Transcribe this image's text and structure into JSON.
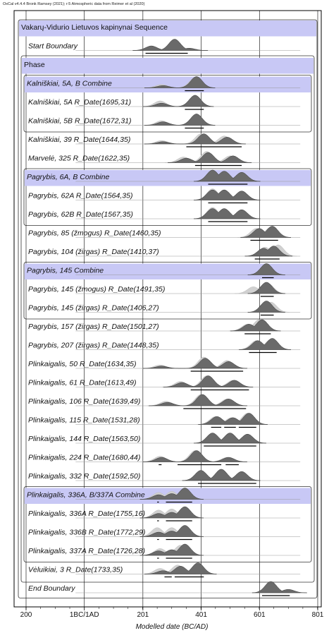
{
  "header": "OxCal v4.4.4 Bronk Ramsey (2021); r:5 Atmospheric data from Reimer et al (2020)",
  "chart_data": {
    "type": "oxcal-multiplot",
    "title": "",
    "xlabel": "Modelled date (BC/AD)",
    "xlim": [
      -200,
      801
    ],
    "xticks": [
      {
        "value": -200,
        "label": "200"
      },
      {
        "value": 0,
        "label": "1BC/1AD"
      },
      {
        "value": 201,
        "label": "201"
      },
      {
        "value": 401,
        "label": "401"
      },
      {
        "value": 601,
        "label": "601"
      },
      {
        "value": 801,
        "label": "801"
      }
    ],
    "rows": [
      {
        "label": "Vakarų-Vidurio Lietuvos kapinynai Sequence",
        "kind": "sequence"
      },
      {
        "label": "Start Boundary",
        "kind": "boundary",
        "posterior": [
          [
            230,
            0.4
          ],
          [
            310,
            1.0
          ],
          [
            360,
            0.2
          ]
        ],
        "range": [
          [
            210,
            355
          ]
        ]
      },
      {
        "label": "Phase",
        "kind": "phase"
      },
      {
        "label": "Kalniškiai, 5A, B Combine",
        "kind": "combine",
        "prior": [
          [
            265,
            0.3
          ],
          [
            380,
            0.9
          ]
        ],
        "posterior": [
          [
            270,
            0.2
          ],
          [
            385,
            1.0
          ]
        ],
        "range": [
          [
            345,
            410
          ]
        ]
      },
      {
        "label": "Kalniškiai, 5A R_Date(1695,31)",
        "kind": "date",
        "prior": [
          [
            260,
            0.5
          ],
          [
            380,
            1.0
          ]
        ],
        "posterior": [
          [
            265,
            0.3
          ],
          [
            380,
            1.0
          ]
        ],
        "range": [
          [
            345,
            410
          ]
        ]
      },
      {
        "label": "Kalniškiai, 5B R_Date(1672,31)",
        "kind": "date",
        "prior": [
          [
            265,
            0.4
          ],
          [
            385,
            1.0
          ]
        ],
        "posterior": [
          [
            270,
            0.3
          ],
          [
            385,
            1.0
          ]
        ],
        "range": [
          [
            345,
            410
          ]
        ]
      },
      {
        "label": "Kalniškiai, 39 R_Date(1644,35)",
        "kind": "date",
        "prior": [
          [
            265,
            0.3
          ],
          [
            400,
            0.9
          ],
          [
            480,
            0.7
          ]
        ],
        "posterior": [
          [
            270,
            0.2
          ],
          [
            410,
            0.9
          ],
          [
            490,
            0.6
          ]
        ],
        "range": [
          [
            350,
            540
          ]
        ]
      },
      {
        "label": "Marvelė, 325 R_Date(1622,35)",
        "kind": "date",
        "prior": [
          [
            340,
            0.5
          ],
          [
            420,
            1.0
          ],
          [
            500,
            0.6
          ]
        ],
        "posterior": [
          [
            350,
            0.4
          ],
          [
            425,
            0.9
          ],
          [
            510,
            0.6
          ]
        ],
        "range": [
          [
            380,
            540
          ]
        ]
      },
      {
        "label": "Pagrybis, 6A, B Combine",
        "kind": "combine",
        "prior": [
          [
            440,
            1.0
          ],
          [
            480,
            0.9
          ],
          [
            540,
            0.8
          ]
        ],
        "posterior": [
          [
            440,
            1.0
          ],
          [
            480,
            0.9
          ],
          [
            540,
            0.8
          ]
        ],
        "range": [
          [
            425,
            560
          ]
        ]
      },
      {
        "label": "Pagrybis, 62A R_Date(1564,35)",
        "kind": "date",
        "prior": [
          [
            440,
            1.0
          ],
          [
            480,
            0.9
          ],
          [
            540,
            0.8
          ]
        ],
        "posterior": [
          [
            440,
            0.9
          ],
          [
            480,
            0.9
          ],
          [
            540,
            0.8
          ]
        ],
        "range": [
          [
            425,
            560
          ]
        ]
      },
      {
        "label": "Pagrybis, 62B R_Date(1567,35)",
        "kind": "date",
        "prior": [
          [
            440,
            1.0
          ],
          [
            480,
            0.9
          ],
          [
            540,
            0.8
          ]
        ],
        "posterior": [
          [
            440,
            0.9
          ],
          [
            480,
            0.9
          ],
          [
            540,
            0.8
          ]
        ],
        "range": [
          [
            425,
            560
          ]
        ]
      },
      {
        "label": "Pagrybis, 85 (žmogus) R_Date(1460,35)",
        "kind": "date",
        "prior": [
          [
            590,
            0.8
          ],
          [
            640,
            0.9
          ]
        ],
        "posterior": [
          [
            600,
            0.8
          ],
          [
            645,
            1.0
          ]
        ],
        "range": [
          [
            570,
            665
          ]
        ]
      },
      {
        "label": "Pagrybis, 104 (žirgas) R_Date(1410,37)",
        "kind": "date",
        "prior": [
          [
            620,
            0.8
          ],
          [
            665,
            1.0
          ]
        ],
        "posterior": [
          [
            615,
            0.7
          ],
          [
            650,
            0.9
          ]
        ],
        "range": [
          [
            585,
            670
          ]
        ]
      },
      {
        "label": "Pagrybis, 145 Combine",
        "kind": "combine",
        "prior": [
          [
            625,
            1.0
          ]
        ],
        "posterior": [
          [
            625,
            1.0
          ]
        ],
        "range": [
          [
            610,
            650
          ]
        ]
      },
      {
        "label": "Pagrybis, 145 (žmogus) R_Date(1491,35)",
        "kind": "date",
        "prior": [
          [
            580,
            0.6
          ],
          [
            630,
            0.9
          ]
        ],
        "posterior": [
          [
            625,
            1.0
          ]
        ],
        "range": [
          [
            605,
            650
          ]
        ]
      },
      {
        "label": "Pagrybis, 145 (žirgas) R_Date(1406,27)",
        "kind": "date",
        "prior": [
          [
            640,
            0.9
          ]
        ],
        "posterior": [
          [
            625,
            1.0
          ]
        ],
        "range": [
          [
            605,
            650
          ]
        ]
      },
      {
        "label": "Pagrybis, 157 (žirgas) R_Date(1501,27)",
        "kind": "date",
        "prior": [
          [
            560,
            0.6
          ],
          [
            600,
            1.0
          ]
        ],
        "posterior": [
          [
            565,
            0.6
          ],
          [
            610,
            1.0
          ]
        ],
        "range": [
          [
            550,
            640
          ]
        ]
      },
      {
        "label": "Pagrybis, 207 (žirgas) R_Date(1448,35)",
        "kind": "date",
        "prior": [
          [
            590,
            0.8
          ],
          [
            640,
            0.9
          ]
        ],
        "posterior": [
          [
            595,
            0.8
          ],
          [
            645,
            1.0
          ]
        ],
        "range": [
          [
            565,
            660
          ]
        ]
      },
      {
        "label": "Plinkaigalis, 50 R_Date(1634,35)",
        "kind": "date",
        "prior": [
          [
            260,
            0.3
          ],
          [
            410,
            1.0
          ],
          [
            490,
            0.7
          ]
        ],
        "posterior": [
          [
            265,
            0.2
          ],
          [
            415,
            0.9
          ],
          [
            495,
            0.6
          ]
        ],
        "range": [
          [
            365,
            545
          ]
        ]
      },
      {
        "label": "Plinkaigalis, 61 R_Date(1613,49)",
        "kind": "date",
        "prior": [
          [
            330,
            0.5
          ],
          [
            420,
            1.0
          ],
          [
            510,
            0.6
          ]
        ],
        "posterior": [
          [
            335,
            0.4
          ],
          [
            425,
            1.0
          ],
          [
            515,
            0.6
          ]
        ],
        "range": [
          [
            365,
            565
          ]
        ]
      },
      {
        "label": "Plinkaigalis, 106 R_Date(1639,49)",
        "kind": "date",
        "prior": [
          [
            280,
            0.4
          ],
          [
            400,
            1.0
          ],
          [
            490,
            0.6
          ]
        ],
        "posterior": [
          [
            285,
            0.3
          ],
          [
            405,
            1.0
          ],
          [
            495,
            0.6
          ]
        ],
        "range": [
          [
            340,
            555
          ]
        ]
      },
      {
        "label": "Plinkaigalis, 115 R_Date(1531,28)",
        "kind": "date",
        "prior": [
          [
            450,
            0.7
          ],
          [
            505,
            0.6
          ],
          [
            560,
            1.0
          ]
        ],
        "posterior": [
          [
            455,
            0.7
          ],
          [
            510,
            0.6
          ],
          [
            565,
            1.0
          ]
        ],
        "range": [
          [
            435,
            470
          ],
          [
            480,
            520
          ],
          [
            530,
            590
          ]
        ]
      },
      {
        "label": "Plinkaigalis, 144 R_Date(1563,50)",
        "kind": "date",
        "prior": [
          [
            440,
            0.9
          ],
          [
            500,
            0.9
          ],
          [
            560,
            0.8
          ]
        ],
        "posterior": [
          [
            440,
            0.9
          ],
          [
            500,
            0.9
          ],
          [
            560,
            0.8
          ]
        ],
        "range": [
          [
            410,
            590
          ]
        ]
      },
      {
        "label": "Plinkaigalis, 224 R_Date(1680,44)",
        "kind": "date",
        "prior": [
          [
            260,
            0.5
          ],
          [
            380,
            1.0
          ],
          [
            490,
            0.4
          ]
        ],
        "posterior": [
          [
            265,
            0.4
          ],
          [
            385,
            1.0
          ],
          [
            495,
            0.4
          ]
        ],
        "range": [
          [
            255,
            265
          ],
          [
            320,
            470
          ],
          [
            485,
            530
          ]
        ]
      },
      {
        "label": "Plinkaigalis, 332 R_Date(1592,50)",
        "kind": "date",
        "prior": [
          [
            400,
            0.9
          ],
          [
            470,
            1.0
          ],
          [
            540,
            0.8
          ]
        ],
        "posterior": [
          [
            400,
            0.9
          ],
          [
            470,
            1.0
          ],
          [
            540,
            0.8
          ]
        ],
        "range": [
          [
            390,
            590
          ]
        ]
      },
      {
        "label": "Plinkaigalis, 336A, B/337A Combine",
        "kind": "combine",
        "prior": [
          [
            255,
            0.6
          ],
          [
            300,
            0.7
          ],
          [
            345,
            1.0
          ]
        ],
        "posterior": [
          [
            255,
            0.4
          ],
          [
            300,
            0.5
          ],
          [
            345,
            1.0
          ]
        ],
        "range": [
          [
            250,
            256
          ],
          [
            280,
            370
          ]
        ]
      },
      {
        "label": "Plinkaigalis, 336A R_Date(1755,16)",
        "kind": "date",
        "prior": [
          [
            255,
            0.7
          ],
          [
            300,
            0.8
          ],
          [
            345,
            0.9
          ]
        ],
        "posterior": [
          [
            255,
            0.4
          ],
          [
            300,
            0.5
          ],
          [
            345,
            1.0
          ]
        ],
        "range": [
          [
            250,
            256
          ],
          [
            280,
            370
          ]
        ]
      },
      {
        "label": "Plinkaigalis, 336B R_Date(1772,29)",
        "kind": "date",
        "prior": [
          [
            250,
            0.8
          ],
          [
            300,
            0.8
          ],
          [
            340,
            0.6
          ]
        ],
        "posterior": [
          [
            255,
            0.4
          ],
          [
            300,
            0.5
          ],
          [
            345,
            1.0
          ]
        ],
        "range": [
          [
            250,
            256
          ],
          [
            280,
            370
          ]
        ]
      },
      {
        "label": "Plinkaigalis, 337A R_Date(1726,28)",
        "kind": "date",
        "prior": [
          [
            260,
            0.6
          ],
          [
            330,
            0.9
          ]
        ],
        "posterior": [
          [
            255,
            0.4
          ],
          [
            300,
            0.5
          ],
          [
            345,
            1.0
          ]
        ],
        "range": [
          [
            250,
            256
          ],
          [
            280,
            370
          ]
        ]
      },
      {
        "label": "Vėluikiai, 3 R_Date(1733,35)",
        "kind": "date",
        "prior": [
          [
            260,
            0.5
          ],
          [
            320,
            0.8
          ]
        ],
        "posterior": [
          [
            270,
            0.3
          ],
          [
            330,
            0.7
          ],
          [
            390,
            1.0
          ]
        ],
        "range": [
          [
            275,
            300
          ],
          [
            310,
            410
          ]
        ]
      },
      {
        "label": "End Boundary",
        "kind": "boundary",
        "posterior": [
          [
            640,
            1.0
          ],
          [
            700,
            0.3
          ]
        ],
        "range": [
          [
            610,
            705
          ]
        ]
      }
    ]
  }
}
